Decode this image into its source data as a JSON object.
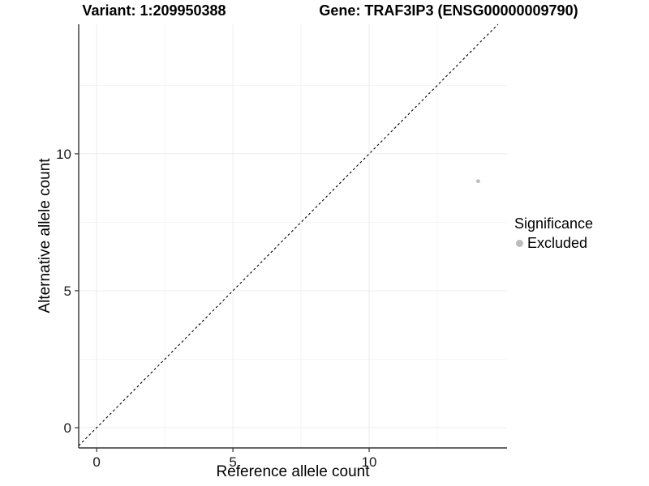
{
  "chart_data": {
    "type": "scatter",
    "title_left": "Variant: 1:209950388",
    "title_right": "Gene: TRAF3IP3 (ENSG00000009790)",
    "xlabel": "Reference allele count",
    "ylabel": "Alternative allele count",
    "xlim": [
      -0.66,
      15.06
    ],
    "ylim": [
      -0.74,
      14.73
    ],
    "x_major_ticks": [
      0,
      5,
      10
    ],
    "y_major_ticks": [
      0,
      5,
      10
    ],
    "x_minor_ticks": [
      2.5,
      7.5,
      12.5
    ],
    "y_minor_ticks": [
      2.5,
      7.5,
      12.5
    ],
    "grid": true,
    "identity_line": {
      "style": "dashed",
      "slope": 1,
      "intercept": 0,
      "color": "#000000"
    },
    "points": [
      {
        "x": 14,
        "y": 9,
        "series": "Excluded",
        "color": "#bdbdbd",
        "radius": 2.4
      }
    ],
    "legend": {
      "title": "Significance",
      "position": "right",
      "items": [
        {
          "label": "Excluded",
          "color": "#bdbdbd"
        }
      ]
    },
    "colors": {
      "axis": "#333333",
      "tick_label": "#1a1a1a",
      "grid_major": "#ececec",
      "grid_minor": "#f3f3f3",
      "background": "#ffffff"
    }
  }
}
